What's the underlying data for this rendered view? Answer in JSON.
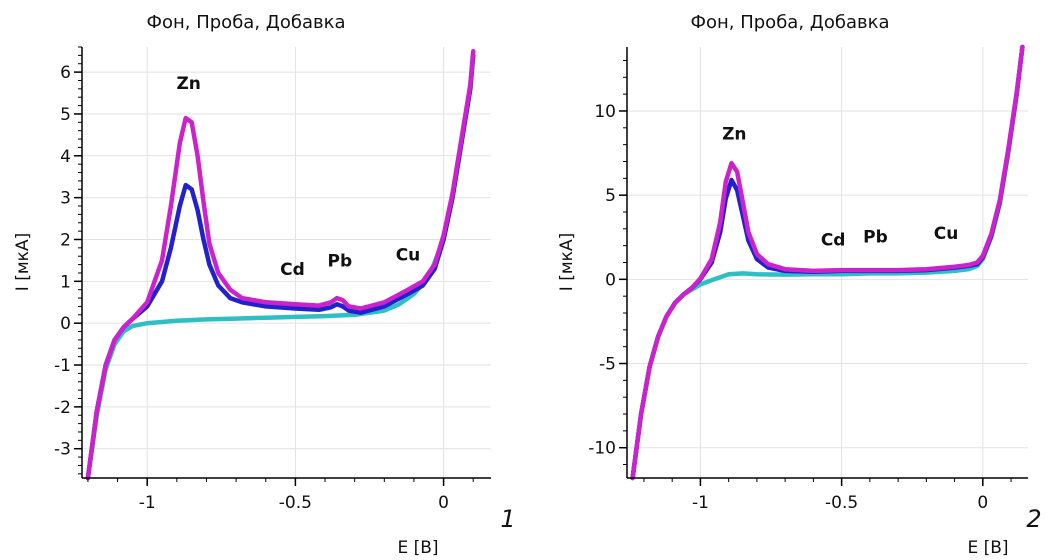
{
  "chart_data": [
    {
      "type": "line",
      "title": "Фон, Проба, Добавка",
      "xlabel": "E [В]",
      "ylabel": "I [мкА]",
      "xlim": [
        -1.22,
        0.16
      ],
      "ylim": [
        -3.7,
        6.6
      ],
      "xticks": [
        -1,
        -0.5,
        0
      ],
      "yticks": [
        -3,
        -2,
        -1,
        0,
        1,
        2,
        3,
        4,
        5,
        6
      ],
      "grid": true,
      "panel_label": "1",
      "series": [
        {
          "color": "#2ebfc4",
          "x": [
            -1.2,
            -1.17,
            -1.14,
            -1.11,
            -1.08,
            -1.05,
            -1.0,
            -0.9,
            -0.8,
            -0.7,
            -0.6,
            -0.5,
            -0.4,
            -0.3,
            -0.2,
            -0.15,
            -0.1,
            -0.05,
            0.0,
            0.03,
            0.06,
            0.09,
            0.1
          ],
          "y": [
            -3.7,
            -2.2,
            -1.1,
            -0.5,
            -0.2,
            -0.07,
            0.0,
            0.06,
            0.09,
            0.11,
            0.13,
            0.15,
            0.17,
            0.2,
            0.3,
            0.45,
            0.7,
            1.1,
            2.0,
            3.0,
            4.3,
            5.6,
            6.4
          ]
        },
        {
          "color": "#2222cc",
          "x": [
            -1.2,
            -1.17,
            -1.14,
            -1.11,
            -1.08,
            -1.05,
            -1.0,
            -0.95,
            -0.92,
            -0.89,
            -0.87,
            -0.85,
            -0.83,
            -0.81,
            -0.79,
            -0.76,
            -0.72,
            -0.68,
            -0.6,
            -0.5,
            -0.42,
            -0.38,
            -0.36,
            -0.34,
            -0.32,
            -0.28,
            -0.2,
            -0.12,
            -0.07,
            -0.03,
            0.0,
            0.03,
            0.06,
            0.09,
            0.1
          ],
          "y": [
            -3.7,
            -2.1,
            -1.0,
            -0.4,
            -0.1,
            0.1,
            0.4,
            1.0,
            1.8,
            2.8,
            3.3,
            3.2,
            2.7,
            2.0,
            1.4,
            0.9,
            0.6,
            0.5,
            0.4,
            0.35,
            0.32,
            0.38,
            0.45,
            0.4,
            0.3,
            0.25,
            0.4,
            0.7,
            0.9,
            1.3,
            2.0,
            3.0,
            4.3,
            5.6,
            6.4
          ]
        },
        {
          "color": "#cc22cc",
          "x": [
            -1.2,
            -1.17,
            -1.14,
            -1.11,
            -1.08,
            -1.05,
            -1.0,
            -0.95,
            -0.92,
            -0.89,
            -0.87,
            -0.85,
            -0.83,
            -0.81,
            -0.79,
            -0.76,
            -0.72,
            -0.68,
            -0.6,
            -0.5,
            -0.42,
            -0.38,
            -0.36,
            -0.34,
            -0.32,
            -0.28,
            -0.2,
            -0.12,
            -0.07,
            -0.03,
            0.0,
            0.03,
            0.06,
            0.09,
            0.1
          ],
          "y": [
            -3.7,
            -2.1,
            -1.0,
            -0.4,
            -0.1,
            0.1,
            0.5,
            1.5,
            2.8,
            4.3,
            4.9,
            4.8,
            4.0,
            2.9,
            1.9,
            1.2,
            0.8,
            0.6,
            0.5,
            0.45,
            0.42,
            0.5,
            0.6,
            0.55,
            0.4,
            0.35,
            0.5,
            0.8,
            1.0,
            1.4,
            2.1,
            3.1,
            4.4,
            5.7,
            6.5
          ]
        }
      ],
      "annotations": [
        {
          "text": "Zn",
          "x": -0.86,
          "y": 5.6
        },
        {
          "text": "Cd",
          "x": -0.51,
          "y": 1.15
        },
        {
          "text": "Pb",
          "x": -0.35,
          "y": 1.35
        },
        {
          "text": "Cu",
          "x": -0.12,
          "y": 1.5
        }
      ]
    },
    {
      "type": "line",
      "title": "Фон, Проба, Добавка",
      "xlabel": "E [В]",
      "ylabel": "I [мкА]",
      "xlim": [
        -1.26,
        0.16
      ],
      "ylim": [
        -11.8,
        13.8
      ],
      "xticks": [
        -1,
        -0.5,
        0
      ],
      "yticks": [
        -10,
        -5,
        0,
        5,
        10
      ],
      "grid": true,
      "panel_label": "2",
      "series": [
        {
          "color": "#2ebfc4",
          "x": [
            -1.24,
            -1.21,
            -1.18,
            -1.15,
            -1.12,
            -1.09,
            -1.06,
            -1.03,
            -1.0,
            -0.95,
            -0.9,
            -0.85,
            -0.8,
            -0.7,
            -0.6,
            -0.5,
            -0.4,
            -0.3,
            -0.2,
            -0.1,
            -0.05,
            -0.02,
            0.0,
            0.03,
            0.06,
            0.09,
            0.12,
            0.14
          ],
          "y": [
            -11.8,
            -8.0,
            -5.2,
            -3.4,
            -2.2,
            -1.4,
            -0.9,
            -0.6,
            -0.3,
            0.0,
            0.3,
            0.35,
            0.3,
            0.28,
            0.3,
            0.3,
            0.35,
            0.35,
            0.4,
            0.5,
            0.6,
            0.8,
            1.2,
            2.5,
            4.5,
            7.5,
            11.0,
            13.8
          ]
        },
        {
          "color": "#2222cc",
          "x": [
            -1.24,
            -1.21,
            -1.18,
            -1.15,
            -1.12,
            -1.09,
            -1.06,
            -1.03,
            -1.0,
            -0.96,
            -0.93,
            -0.91,
            -0.89,
            -0.87,
            -0.85,
            -0.83,
            -0.8,
            -0.76,
            -0.7,
            -0.6,
            -0.5,
            -0.4,
            -0.3,
            -0.2,
            -0.1,
            -0.05,
            -0.02,
            0.0,
            0.03,
            0.06,
            0.09,
            0.12,
            0.14
          ],
          "y": [
            -11.8,
            -8.0,
            -5.2,
            -3.4,
            -2.2,
            -1.4,
            -0.9,
            -0.5,
            0.0,
            1.0,
            2.8,
            4.8,
            5.9,
            5.3,
            3.8,
            2.3,
            1.2,
            0.7,
            0.5,
            0.45,
            0.5,
            0.5,
            0.5,
            0.55,
            0.7,
            0.8,
            0.9,
            1.3,
            2.6,
            4.6,
            7.6,
            11.0,
            13.8
          ]
        },
        {
          "color": "#cc22cc",
          "x": [
            -1.24,
            -1.21,
            -1.18,
            -1.15,
            -1.12,
            -1.09,
            -1.06,
            -1.03,
            -1.0,
            -0.96,
            -0.93,
            -0.91,
            -0.89,
            -0.87,
            -0.85,
            -0.83,
            -0.8,
            -0.76,
            -0.7,
            -0.6,
            -0.5,
            -0.4,
            -0.3,
            -0.2,
            -0.1,
            -0.05,
            -0.02,
            0.0,
            0.03,
            0.06,
            0.09,
            0.12,
            0.14
          ],
          "y": [
            -11.8,
            -8.0,
            -5.2,
            -3.4,
            -2.2,
            -1.4,
            -0.9,
            -0.5,
            0.05,
            1.2,
            3.4,
            5.8,
            6.9,
            6.4,
            4.6,
            2.8,
            1.5,
            0.9,
            0.6,
            0.5,
            0.55,
            0.55,
            0.55,
            0.6,
            0.75,
            0.85,
            1.0,
            1.4,
            2.7,
            4.7,
            7.7,
            11.1,
            13.8
          ]
        }
      ],
      "annotations": [
        {
          "text": "Zn",
          "x": -0.88,
          "y": 8.3
        },
        {
          "text": "Cd",
          "x": -0.53,
          "y": 2.0
        },
        {
          "text": "Pb",
          "x": -0.38,
          "y": 2.2
        },
        {
          "text": "Cu",
          "x": -0.13,
          "y": 2.4
        }
      ]
    }
  ]
}
